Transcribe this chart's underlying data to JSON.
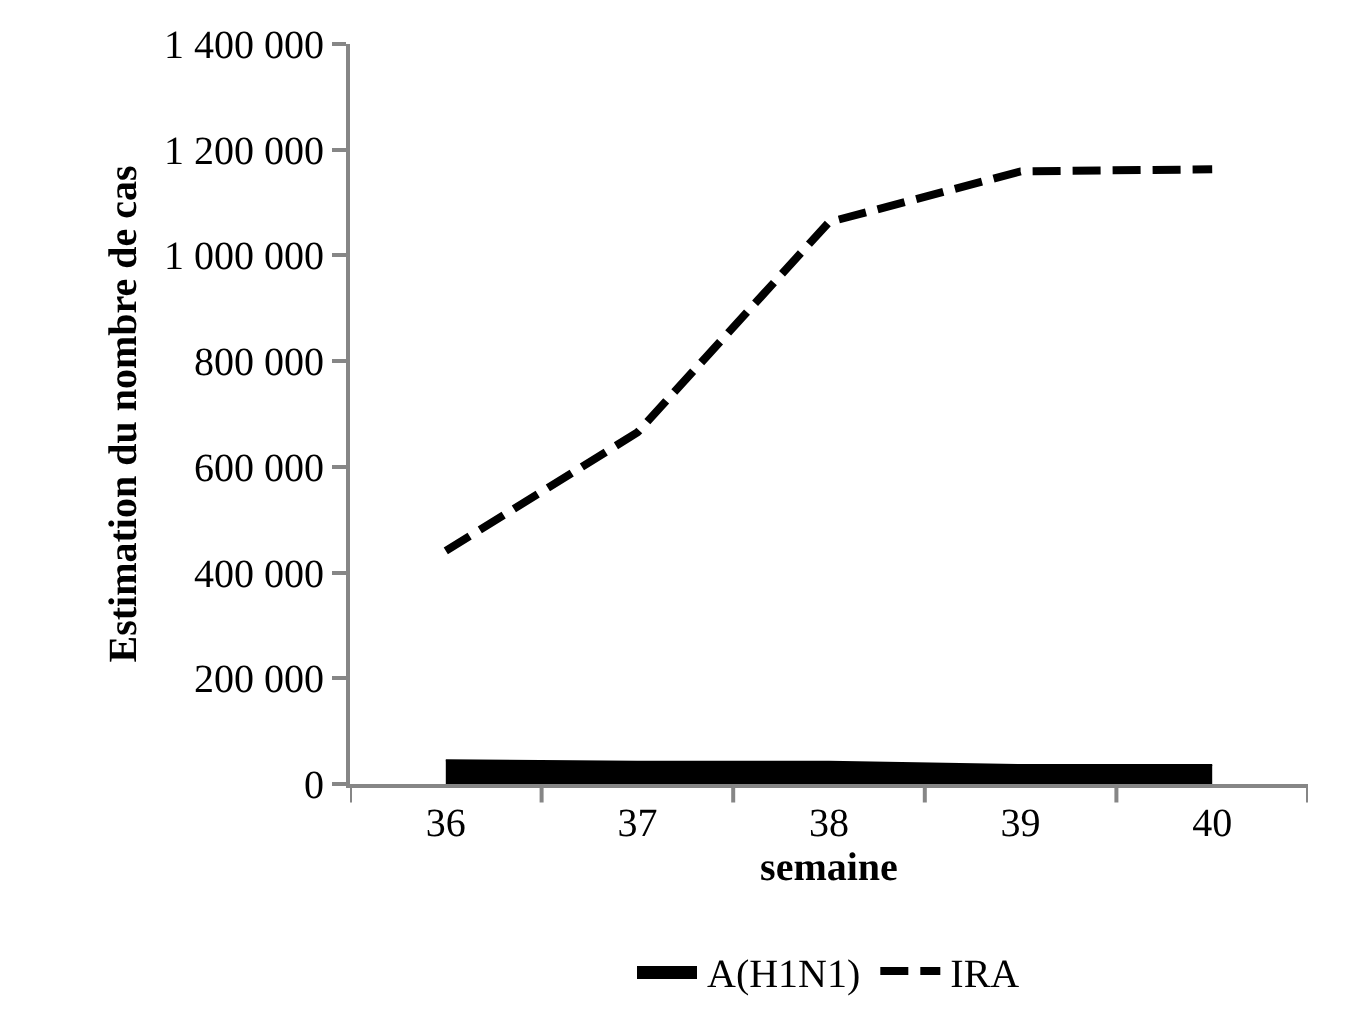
{
  "chart_data": {
    "type": "line",
    "xlabel": "semaine",
    "ylabel": "Estimation du nombre de cas",
    "categories": [
      "36",
      "37",
      "38",
      "39",
      "40"
    ],
    "series": [
      {
        "name": "A(H1N1)",
        "type": "area",
        "color": "#000000",
        "values": [
          45000,
          42000,
          42000,
          36000,
          36000
        ]
      },
      {
        "name": "IRA",
        "type": "line",
        "color": "#000000",
        "line_style": "dashed",
        "values": [
          441000,
          665000,
          1063000,
          1159000,
          1163000
        ]
      }
    ],
    "ylim": [
      0,
      1400000
    ],
    "yticks": [
      {
        "value": 0,
        "label": "0"
      },
      {
        "value": 200000,
        "label": "200 000"
      },
      {
        "value": 400000,
        "label": "400 000"
      },
      {
        "value": 600000,
        "label": "600 000"
      },
      {
        "value": 800000,
        "label": "800 000"
      },
      {
        "value": 1000000,
        "label": "1 000 000"
      },
      {
        "value": 1200000,
        "label": "1 200 000"
      },
      {
        "value": 1400000,
        "label": "1 400 000"
      }
    ],
    "grid": false,
    "legend": "bottom",
    "marker": "none"
  }
}
